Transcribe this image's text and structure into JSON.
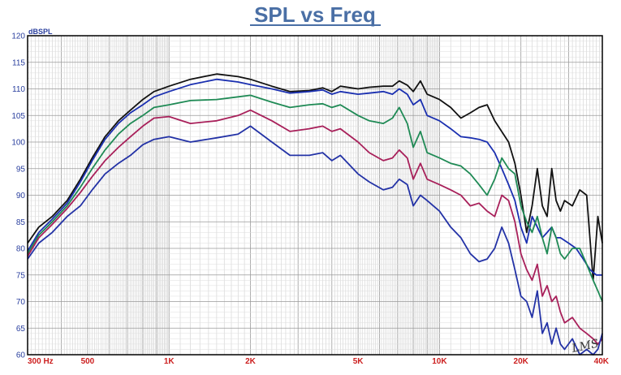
{
  "chart_data": {
    "type": "line",
    "title": "SPL vs Freq",
    "ylabel": "dBSPL",
    "xlabel": "",
    "x_scale": "log",
    "xlim": [
      300,
      40000
    ],
    "ylim": [
      60,
      120
    ],
    "grid": true,
    "watermark": "LMS",
    "y_ticks": [
      60,
      65,
      70,
      75,
      80,
      85,
      90,
      95,
      100,
      105,
      110,
      115,
      120
    ],
    "x_ticks": [
      {
        "value": 300,
        "label": "300  Hz"
      },
      {
        "value": 500,
        "label": "500"
      },
      {
        "value": 1000,
        "label": "1K"
      },
      {
        "value": 2000,
        "label": "2K"
      },
      {
        "value": 5000,
        "label": "5K"
      },
      {
        "value": 10000,
        "label": "10K"
      },
      {
        "value": 20000,
        "label": "20K"
      },
      {
        "value": 40000,
        "label": "40K"
      }
    ],
    "series": [
      {
        "color": "#111111",
        "points": [
          [
            300,
            81
          ],
          [
            330,
            84
          ],
          [
            370,
            86
          ],
          [
            420,
            89
          ],
          [
            470,
            93
          ],
          [
            520,
            97
          ],
          [
            580,
            101
          ],
          [
            650,
            104
          ],
          [
            720,
            106
          ],
          [
            800,
            108
          ],
          [
            880,
            109.5
          ],
          [
            1000,
            110.5
          ],
          [
            1200,
            111.8
          ],
          [
            1500,
            112.8
          ],
          [
            1800,
            112.3
          ],
          [
            2000,
            111.8
          ],
          [
            2400,
            110.5
          ],
          [
            2800,
            109.5
          ],
          [
            3300,
            109.7
          ],
          [
            3700,
            110.2
          ],
          [
            4000,
            109.5
          ],
          [
            4300,
            110.5
          ],
          [
            5000,
            110
          ],
          [
            5500,
            110.3
          ],
          [
            6200,
            110.5
          ],
          [
            6700,
            110.5
          ],
          [
            7100,
            111.5
          ],
          [
            7600,
            110.7
          ],
          [
            8000,
            109.5
          ],
          [
            8500,
            111.5
          ],
          [
            9000,
            109
          ],
          [
            10000,
            108
          ],
          [
            11000,
            106.5
          ],
          [
            12000,
            104.5
          ],
          [
            13000,
            105.5
          ],
          [
            14000,
            106.5
          ],
          [
            15000,
            107
          ],
          [
            16000,
            104
          ],
          [
            18000,
            100
          ],
          [
            19000,
            96
          ],
          [
            20000,
            90
          ],
          [
            21000,
            83
          ],
          [
            22000,
            88
          ],
          [
            23000,
            95
          ],
          [
            24000,
            88
          ],
          [
            25000,
            86
          ],
          [
            26000,
            95
          ],
          [
            27000,
            89
          ],
          [
            28000,
            87
          ],
          [
            29000,
            89
          ],
          [
            31000,
            88
          ],
          [
            33000,
            91
          ],
          [
            35000,
            90
          ],
          [
            37000,
            74
          ],
          [
            38500,
            86
          ],
          [
            40000,
            81
          ]
        ]
      },
      {
        "color": "#1a2fb0",
        "points": [
          [
            300,
            79.5
          ],
          [
            330,
            83
          ],
          [
            370,
            85.5
          ],
          [
            420,
            88.5
          ],
          [
            470,
            92.5
          ],
          [
            520,
            96.5
          ],
          [
            580,
            100.5
          ],
          [
            650,
            103.5
          ],
          [
            720,
            105.5
          ],
          [
            800,
            107
          ],
          [
            880,
            108.5
          ],
          [
            1000,
            109.5
          ],
          [
            1200,
            110.8
          ],
          [
            1500,
            111.8
          ],
          [
            1800,
            111.3
          ],
          [
            2000,
            110.8
          ],
          [
            2400,
            110
          ],
          [
            2800,
            109.2
          ],
          [
            3300,
            109.5
          ],
          [
            3700,
            109.8
          ],
          [
            4000,
            109
          ],
          [
            4300,
            109.5
          ],
          [
            5000,
            109
          ],
          [
            5500,
            109.2
          ],
          [
            6200,
            109.5
          ],
          [
            6700,
            109
          ],
          [
            7100,
            110
          ],
          [
            7600,
            109
          ],
          [
            8000,
            107
          ],
          [
            8500,
            108
          ],
          [
            9000,
            105
          ],
          [
            10000,
            104
          ],
          [
            11000,
            102.5
          ],
          [
            12000,
            101
          ],
          [
            13000,
            100.8
          ],
          [
            14000,
            100.5
          ],
          [
            15000,
            100
          ],
          [
            16000,
            98
          ],
          [
            17000,
            95
          ],
          [
            18000,
            92
          ],
          [
            19000,
            89
          ],
          [
            20000,
            84
          ],
          [
            21000,
            81
          ],
          [
            22000,
            86
          ],
          [
            23000,
            84
          ],
          [
            24000,
            82
          ],
          [
            25000,
            83
          ],
          [
            26000,
            84
          ],
          [
            27000,
            82
          ],
          [
            28000,
            82
          ],
          [
            30000,
            81
          ],
          [
            32000,
            80
          ],
          [
            34000,
            78
          ],
          [
            36000,
            76
          ],
          [
            38000,
            75
          ],
          [
            40000,
            75
          ]
        ]
      },
      {
        "color": "#1f8a55",
        "points": [
          [
            300,
            79
          ],
          [
            330,
            82.5
          ],
          [
            370,
            85
          ],
          [
            420,
            88
          ],
          [
            470,
            91.5
          ],
          [
            520,
            95
          ],
          [
            580,
            98.5
          ],
          [
            650,
            101.5
          ],
          [
            720,
            103.5
          ],
          [
            800,
            105
          ],
          [
            880,
            106.5
          ],
          [
            1000,
            107
          ],
          [
            1200,
            107.8
          ],
          [
            1500,
            108
          ],
          [
            1800,
            108.5
          ],
          [
            2000,
            108.8
          ],
          [
            2400,
            107.5
          ],
          [
            2800,
            106.5
          ],
          [
            3300,
            107
          ],
          [
            3700,
            107.2
          ],
          [
            4000,
            106.5
          ],
          [
            4300,
            107
          ],
          [
            5000,
            105
          ],
          [
            5500,
            104
          ],
          [
            6200,
            103.5
          ],
          [
            6700,
            104.5
          ],
          [
            7100,
            106.5
          ],
          [
            7600,
            103.5
          ],
          [
            8000,
            99
          ],
          [
            8500,
            102
          ],
          [
            9000,
            98
          ],
          [
            10000,
            97
          ],
          [
            11000,
            96
          ],
          [
            12000,
            95.5
          ],
          [
            13000,
            94
          ],
          [
            14000,
            92
          ],
          [
            15000,
            90
          ],
          [
            16000,
            93
          ],
          [
            17000,
            97
          ],
          [
            18000,
            95
          ],
          [
            19000,
            94
          ],
          [
            20000,
            88
          ],
          [
            21000,
            85
          ],
          [
            22000,
            83
          ],
          [
            23000,
            86
          ],
          [
            24000,
            82
          ],
          [
            25000,
            79
          ],
          [
            26000,
            84
          ],
          [
            27000,
            82
          ],
          [
            28000,
            79
          ],
          [
            29000,
            78
          ],
          [
            31000,
            80
          ],
          [
            33000,
            80
          ],
          [
            35000,
            77
          ],
          [
            37000,
            74
          ],
          [
            38500,
            72
          ],
          [
            40000,
            70
          ]
        ]
      },
      {
        "color": "#a8205a",
        "points": [
          [
            300,
            78.5
          ],
          [
            330,
            82
          ],
          [
            370,
            84.5
          ],
          [
            420,
            87.5
          ],
          [
            470,
            90.5
          ],
          [
            520,
            93.5
          ],
          [
            580,
            96.5
          ],
          [
            650,
            99
          ],
          [
            720,
            101
          ],
          [
            800,
            103
          ],
          [
            880,
            104.5
          ],
          [
            1000,
            104.8
          ],
          [
            1200,
            103.5
          ],
          [
            1500,
            104
          ],
          [
            1800,
            105
          ],
          [
            2000,
            106
          ],
          [
            2400,
            104
          ],
          [
            2800,
            102
          ],
          [
            3300,
            102.5
          ],
          [
            3700,
            103
          ],
          [
            4000,
            102
          ],
          [
            4300,
            102.5
          ],
          [
            5000,
            100
          ],
          [
            5500,
            98
          ],
          [
            6200,
            96.5
          ],
          [
            6700,
            97
          ],
          [
            7100,
            98.5
          ],
          [
            7600,
            97
          ],
          [
            8000,
            93
          ],
          [
            8500,
            96
          ],
          [
            9000,
            93
          ],
          [
            10000,
            92
          ],
          [
            11000,
            91
          ],
          [
            12000,
            90
          ],
          [
            13000,
            88
          ],
          [
            14000,
            88.5
          ],
          [
            15000,
            87
          ],
          [
            16000,
            86
          ],
          [
            17000,
            90
          ],
          [
            18000,
            89
          ],
          [
            19000,
            85
          ],
          [
            20000,
            79
          ],
          [
            21000,
            76
          ],
          [
            22000,
            74
          ],
          [
            23000,
            77
          ],
          [
            24000,
            71
          ],
          [
            25000,
            73
          ],
          [
            26000,
            70
          ],
          [
            27000,
            71
          ],
          [
            28000,
            68
          ],
          [
            29000,
            66
          ],
          [
            31000,
            67
          ],
          [
            33000,
            65
          ],
          [
            35000,
            64
          ],
          [
            37000,
            63
          ],
          [
            38500,
            62
          ],
          [
            40000,
            63
          ]
        ]
      },
      {
        "color": "#2332a6",
        "points": [
          [
            300,
            78
          ],
          [
            330,
            81
          ],
          [
            370,
            83
          ],
          [
            420,
            86
          ],
          [
            470,
            88
          ],
          [
            520,
            91
          ],
          [
            580,
            94
          ],
          [
            650,
            96
          ],
          [
            720,
            97.5
          ],
          [
            800,
            99.5
          ],
          [
            880,
            100.5
          ],
          [
            1000,
            101
          ],
          [
            1200,
            100
          ],
          [
            1500,
            100.8
          ],
          [
            1800,
            101.5
          ],
          [
            2000,
            103
          ],
          [
            2400,
            100
          ],
          [
            2800,
            97.5
          ],
          [
            3300,
            97.5
          ],
          [
            3700,
            98
          ],
          [
            4000,
            96.5
          ],
          [
            4300,
            97.5
          ],
          [
            5000,
            94
          ],
          [
            5500,
            92.5
          ],
          [
            6200,
            91
          ],
          [
            6700,
            91.5
          ],
          [
            7100,
            93
          ],
          [
            7600,
            92
          ],
          [
            8000,
            88
          ],
          [
            8500,
            90
          ],
          [
            9000,
            89
          ],
          [
            10000,
            87
          ],
          [
            11000,
            84
          ],
          [
            12000,
            82
          ],
          [
            13000,
            79
          ],
          [
            14000,
            77.5
          ],
          [
            15000,
            78
          ],
          [
            16000,
            80
          ],
          [
            17000,
            84
          ],
          [
            18000,
            81
          ],
          [
            19000,
            76
          ],
          [
            20000,
            71
          ],
          [
            21000,
            70
          ],
          [
            22000,
            67
          ],
          [
            23000,
            72
          ],
          [
            24000,
            64
          ],
          [
            25000,
            66
          ],
          [
            26000,
            62
          ],
          [
            27000,
            65
          ],
          [
            28000,
            62
          ],
          [
            29000,
            61
          ],
          [
            31000,
            63
          ],
          [
            33000,
            60
          ],
          [
            35000,
            61
          ],
          [
            37000,
            60
          ],
          [
            38500,
            61
          ],
          [
            40000,
            64
          ]
        ]
      }
    ]
  }
}
